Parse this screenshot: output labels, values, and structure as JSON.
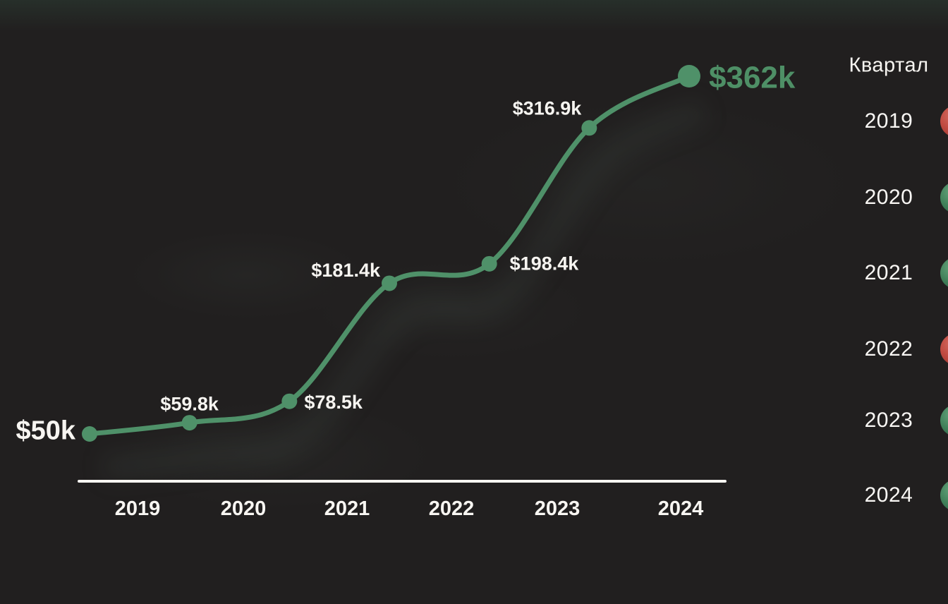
{
  "page": {
    "background": "#211f1f",
    "text_color": "#f7f5f1",
    "accent_green": "#4f9169",
    "accent_red": "#c04a41",
    "axis_color": "#f8f6f2"
  },
  "chart_data": {
    "type": "line",
    "title": "",
    "xlabel": "",
    "ylabel": "",
    "x_tick_labels": [
      "2019",
      "2020",
      "2021",
      "2022",
      "2023",
      "2024"
    ],
    "ylim": [
      50,
      362
    ],
    "grid": false,
    "legend_position": "right",
    "line_color": "#4f9169",
    "points": [
      {
        "label": "$50k",
        "value": 50.0,
        "emphasis": true,
        "label_color": "#f7f5f1"
      },
      {
        "label": "$59.8k",
        "value": 59.8,
        "emphasis": false,
        "label_color": "#f7f5f1"
      },
      {
        "label": "$78.5k",
        "value": 78.5,
        "emphasis": false,
        "label_color": "#f7f5f1"
      },
      {
        "label": "$181.4k",
        "value": 181.4,
        "emphasis": false,
        "label_color": "#f7f5f1"
      },
      {
        "label": "$198.4k",
        "value": 198.4,
        "emphasis": false,
        "label_color": "#f7f5f1"
      },
      {
        "label": "$316.9k",
        "value": 316.9,
        "emphasis": false,
        "label_color": "#f7f5f1"
      },
      {
        "label": "$362k",
        "value": 362.0,
        "emphasis": true,
        "label_color": "#4e8f66"
      }
    ]
  },
  "sidebar": {
    "header": "Квартал",
    "rows": [
      {
        "year": "2019",
        "status": "red",
        "status_color": "#c04a41"
      },
      {
        "year": "2020",
        "status": "green",
        "status_color": "#41815a"
      },
      {
        "year": "2021",
        "status": "green",
        "status_color": "#41815a"
      },
      {
        "year": "2022",
        "status": "red",
        "status_color": "#c04a41"
      },
      {
        "year": "2023",
        "status": "green",
        "status_color": "#41815a"
      },
      {
        "year": "2024",
        "status": "green",
        "status_color": "#41815a"
      }
    ]
  }
}
